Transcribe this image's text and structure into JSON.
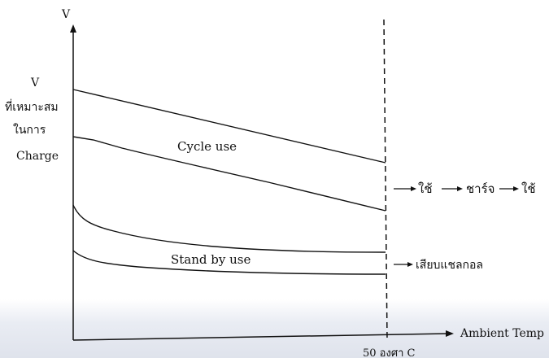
{
  "axes": {
    "y_label": "V",
    "x_label": "Ambient Temp",
    "y_axis_note": [
      "V",
      "ที่เหมาะสม",
      "ในการ",
      "Charge"
    ],
    "x_marker_label": "50 องศา C"
  },
  "bands": [
    {
      "label": "Cycle use",
      "flow": "ใช้ → ชาร์จ → ใช้",
      "flow_parts": [
        "ใช้",
        "ชาร์จ",
        "ใช้"
      ]
    },
    {
      "label": "Stand by use",
      "flow": "เสียบแชลกอล"
    }
  ]
}
